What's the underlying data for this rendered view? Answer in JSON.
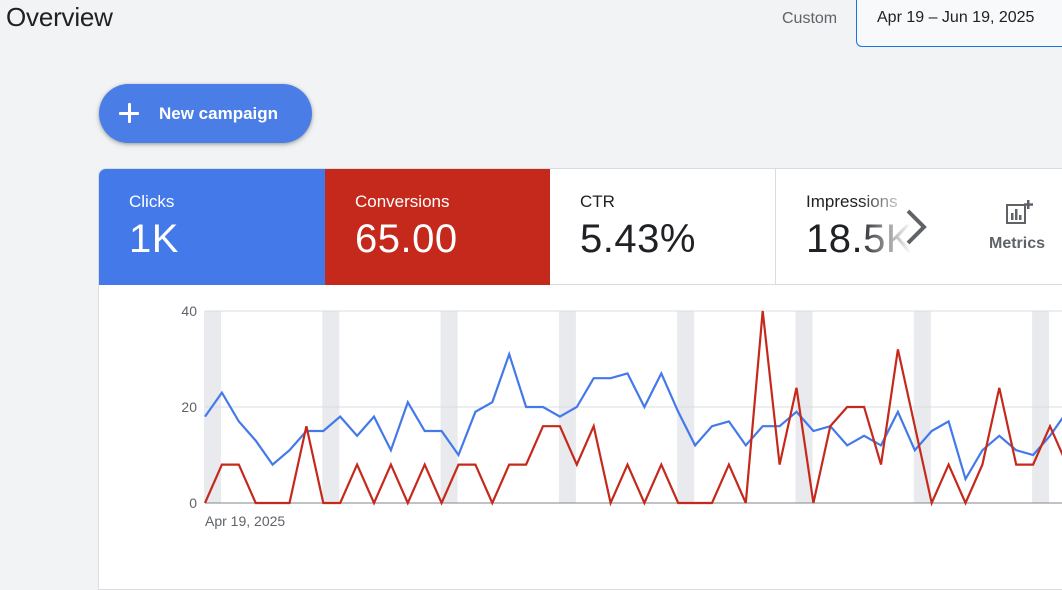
{
  "header": {
    "title": "Overview",
    "range_label": "Custom",
    "date_range": "Apr 19 – Jun 19, 2025"
  },
  "fab": {
    "label": "New campaign",
    "icon": "plus-icon"
  },
  "tiles": [
    {
      "label": "Clicks",
      "value": "1K",
      "color": "#4479e9"
    },
    {
      "label": "Conversions",
      "value": "65.00",
      "color": "#c5291c"
    },
    {
      "label": "CTR",
      "value": "5.43%"
    },
    {
      "label": "Impressions",
      "value": "18.5K"
    }
  ],
  "metrics_button": {
    "label": "Metrics",
    "icon": "add-chart-icon"
  },
  "chart_data": {
    "type": "line",
    "x_start_label": "Apr 19, 2025",
    "ylim": [
      0,
      40
    ],
    "yticks": [
      0,
      20,
      40
    ],
    "grid": true,
    "series": [
      {
        "color": "#4479e9",
        "values": [
          18,
          23,
          17,
          13,
          8,
          11,
          15,
          15,
          18,
          14,
          18,
          11,
          21,
          15,
          15,
          10,
          19,
          21,
          31,
          20,
          20,
          18,
          20,
          26,
          26,
          27,
          20,
          27,
          19,
          12,
          16,
          17,
          12,
          16,
          16,
          19,
          15,
          16,
          12,
          14,
          12,
          19,
          11,
          15,
          17,
          5,
          11,
          14,
          11,
          10,
          14,
          19
        ]
      },
      {
        "color": "#c5291c",
        "values": [
          0,
          8,
          8,
          0,
          0,
          0,
          16,
          0,
          0,
          8,
          0,
          8,
          0,
          8,
          0,
          8,
          8,
          0,
          8,
          8,
          16,
          16,
          8,
          16,
          0,
          8,
          0,
          8,
          0,
          0,
          0,
          8,
          0,
          40,
          8,
          24,
          0,
          16,
          20,
          20,
          8,
          32,
          16,
          0,
          8,
          0,
          8,
          24,
          8,
          8,
          16,
          8
        ]
      }
    ],
    "weekend_bands": [
      0,
      7,
      14,
      21,
      28,
      35,
      42,
      49
    ]
  }
}
